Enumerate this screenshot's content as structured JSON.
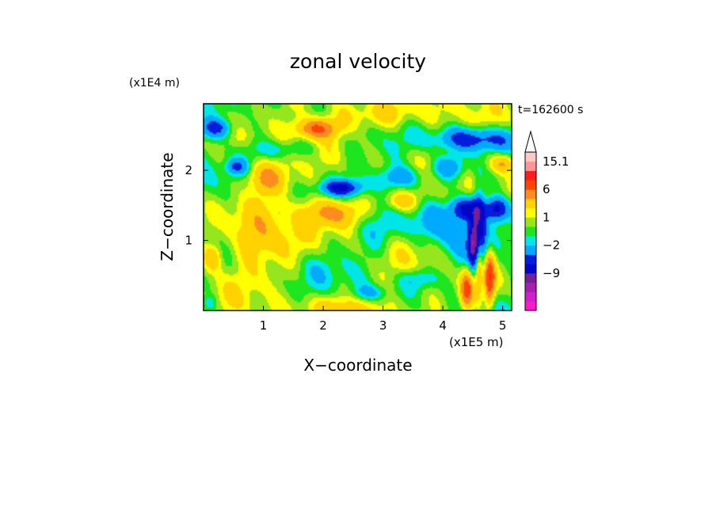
{
  "chart_data": {
    "type": "heatmap",
    "title": "zonal velocity",
    "xlabel": "X−coordinate",
    "ylabel": "Z−coordinate",
    "x_scale_label": "(x1E5 m)",
    "y_scale_label": "(x1E4 m)",
    "time_label": "t=162600 s",
    "xlim": [
      0,
      5.15
    ],
    "ylim": [
      0,
      2.95
    ],
    "x_ticks": [
      {
        "value": 1,
        "label": "1"
      },
      {
        "value": 2,
        "label": "2"
      },
      {
        "value": 3,
        "label": "3"
      },
      {
        "value": 4,
        "label": "4"
      },
      {
        "value": 5,
        "label": "5"
      }
    ],
    "y_ticks": [
      {
        "value": 1,
        "label": "1"
      },
      {
        "value": 2,
        "label": "2"
      }
    ],
    "colorbar": {
      "levels": [
        -20,
        -15,
        -12,
        -9,
        -6,
        -4,
        -2,
        -1,
        0,
        1,
        2,
        4,
        6,
        9,
        12,
        15.1
      ],
      "colors": [
        "#ff19c8",
        "#d21ecd",
        "#aa1eaf",
        "#781e96",
        "#0005c8",
        "#001edc",
        "#00aaff",
        "#00e6e6",
        "#1ee61e",
        "#96e61e",
        "#ffff00",
        "#ffd200",
        "#ff8c1e",
        "#ff4600",
        "#ff1e1e",
        "#ff9696",
        "#ffc8c8"
      ],
      "labels": [
        {
          "value": 15.1,
          "label": "15.1"
        },
        {
          "value": 6,
          "label": "6"
        },
        {
          "value": 1,
          "label": "1"
        },
        {
          "value": -2,
          "label": "−2"
        },
        {
          "value": -9,
          "label": "−9"
        }
      ],
      "extend_max": true
    },
    "features": [
      {
        "x": 4.6,
        "z": 1.0,
        "value": -9,
        "sx": 0.07,
        "sz": 0.45
      },
      {
        "x": 4.6,
        "z": 0.7,
        "value": 9,
        "sx": 0.05,
        "sz": 0.35
      },
      {
        "x": 4.78,
        "z": 0.45,
        "value": 8,
        "sx": 0.06,
        "sz": 0.25
      },
      {
        "x": 4.4,
        "z": 0.3,
        "value": 7,
        "sx": 0.08,
        "sz": 0.2
      },
      {
        "x": 4.5,
        "z": 0.95,
        "value": -8,
        "sx": 0.06,
        "sz": 0.2
      },
      {
        "x": 4.4,
        "z": 1.45,
        "value": -7,
        "sx": 0.18,
        "sz": 0.12
      },
      {
        "x": 4.9,
        "z": 1.45,
        "value": -7,
        "sx": 0.15,
        "sz": 0.12
      },
      {
        "x": 4.2,
        "z": 1.05,
        "value": -3,
        "sx": 0.25,
        "sz": 0.3
      },
      {
        "x": 3.8,
        "z": 1.25,
        "value": -2.5,
        "sx": 0.3,
        "sz": 0.2
      },
      {
        "x": 2.3,
        "z": 1.75,
        "value": -6,
        "sx": 0.25,
        "sz": 0.08
      },
      {
        "x": 3.3,
        "z": 1.9,
        "value": -4,
        "sx": 0.3,
        "sz": 0.12
      },
      {
        "x": 0.2,
        "z": 2.6,
        "value": -5,
        "sx": 0.2,
        "sz": 0.1
      },
      {
        "x": 0.55,
        "z": 2.05,
        "value": -4,
        "sx": 0.12,
        "sz": 0.08
      },
      {
        "x": 1.3,
        "z": 2.3,
        "value": -2.5,
        "sx": 0.4,
        "sz": 0.1
      },
      {
        "x": 4.5,
        "z": 2.45,
        "value": -6,
        "sx": 0.45,
        "sz": 0.12
      },
      {
        "x": 4.1,
        "z": 2.05,
        "value": -4,
        "sx": 0.2,
        "sz": 0.12
      },
      {
        "x": 3.6,
        "z": 0.45,
        "value": -2.5,
        "sx": 0.25,
        "sz": 0.1
      },
      {
        "x": 2.8,
        "z": 0.25,
        "value": -2.5,
        "sx": 0.2,
        "sz": 0.08
      },
      {
        "x": 1.9,
        "z": 2.6,
        "value": 6,
        "sx": 0.25,
        "sz": 0.1
      },
      {
        "x": 2.15,
        "z": 1.4,
        "value": 5,
        "sx": 0.35,
        "sz": 0.15
      },
      {
        "x": 1.05,
        "z": 1.9,
        "value": 4,
        "sx": 0.25,
        "sz": 0.15
      },
      {
        "x": 5.0,
        "z": 2.1,
        "value": 5,
        "sx": 0.15,
        "sz": 0.1
      },
      {
        "x": 3.3,
        "z": 1.55,
        "value": 3,
        "sx": 0.2,
        "sz": 0.1
      },
      {
        "x": 0.15,
        "z": 0.75,
        "value": 4,
        "sx": 0.12,
        "sz": 0.15
      },
      {
        "x": 0.9,
        "z": 1.05,
        "value": 2.5,
        "sx": 0.3,
        "sz": 0.3
      },
      {
        "x": 2.4,
        "z": 0.05,
        "value": 2.5,
        "sx": 0.5,
        "sz": 0.12
      },
      {
        "x": 2.9,
        "z": 2.8,
        "value": 2.5,
        "sx": 0.6,
        "sz": 0.15
      },
      {
        "x": 1.4,
        "z": 1.05,
        "value": 0.5,
        "sx": 0.5,
        "sz": 0.25
      },
      {
        "x": 2.9,
        "z": 1.15,
        "value": -1.2,
        "sx": 0.3,
        "sz": 0.2
      },
      {
        "x": 2.1,
        "z": 0.6,
        "value": -0.5,
        "sx": 0.6,
        "sz": 0.2
      },
      {
        "x": 0.9,
        "z": 0.5,
        "value": 0.2,
        "sx": 0.5,
        "sz": 0.2
      },
      {
        "x": 1.5,
        "z": 2.05,
        "value": -0.5,
        "sx": 0.4,
        "sz": 0.12
      },
      {
        "x": 0.1,
        "z": 0.1,
        "value": -2.5,
        "sx": 0.08,
        "sz": 0.08
      }
    ]
  }
}
